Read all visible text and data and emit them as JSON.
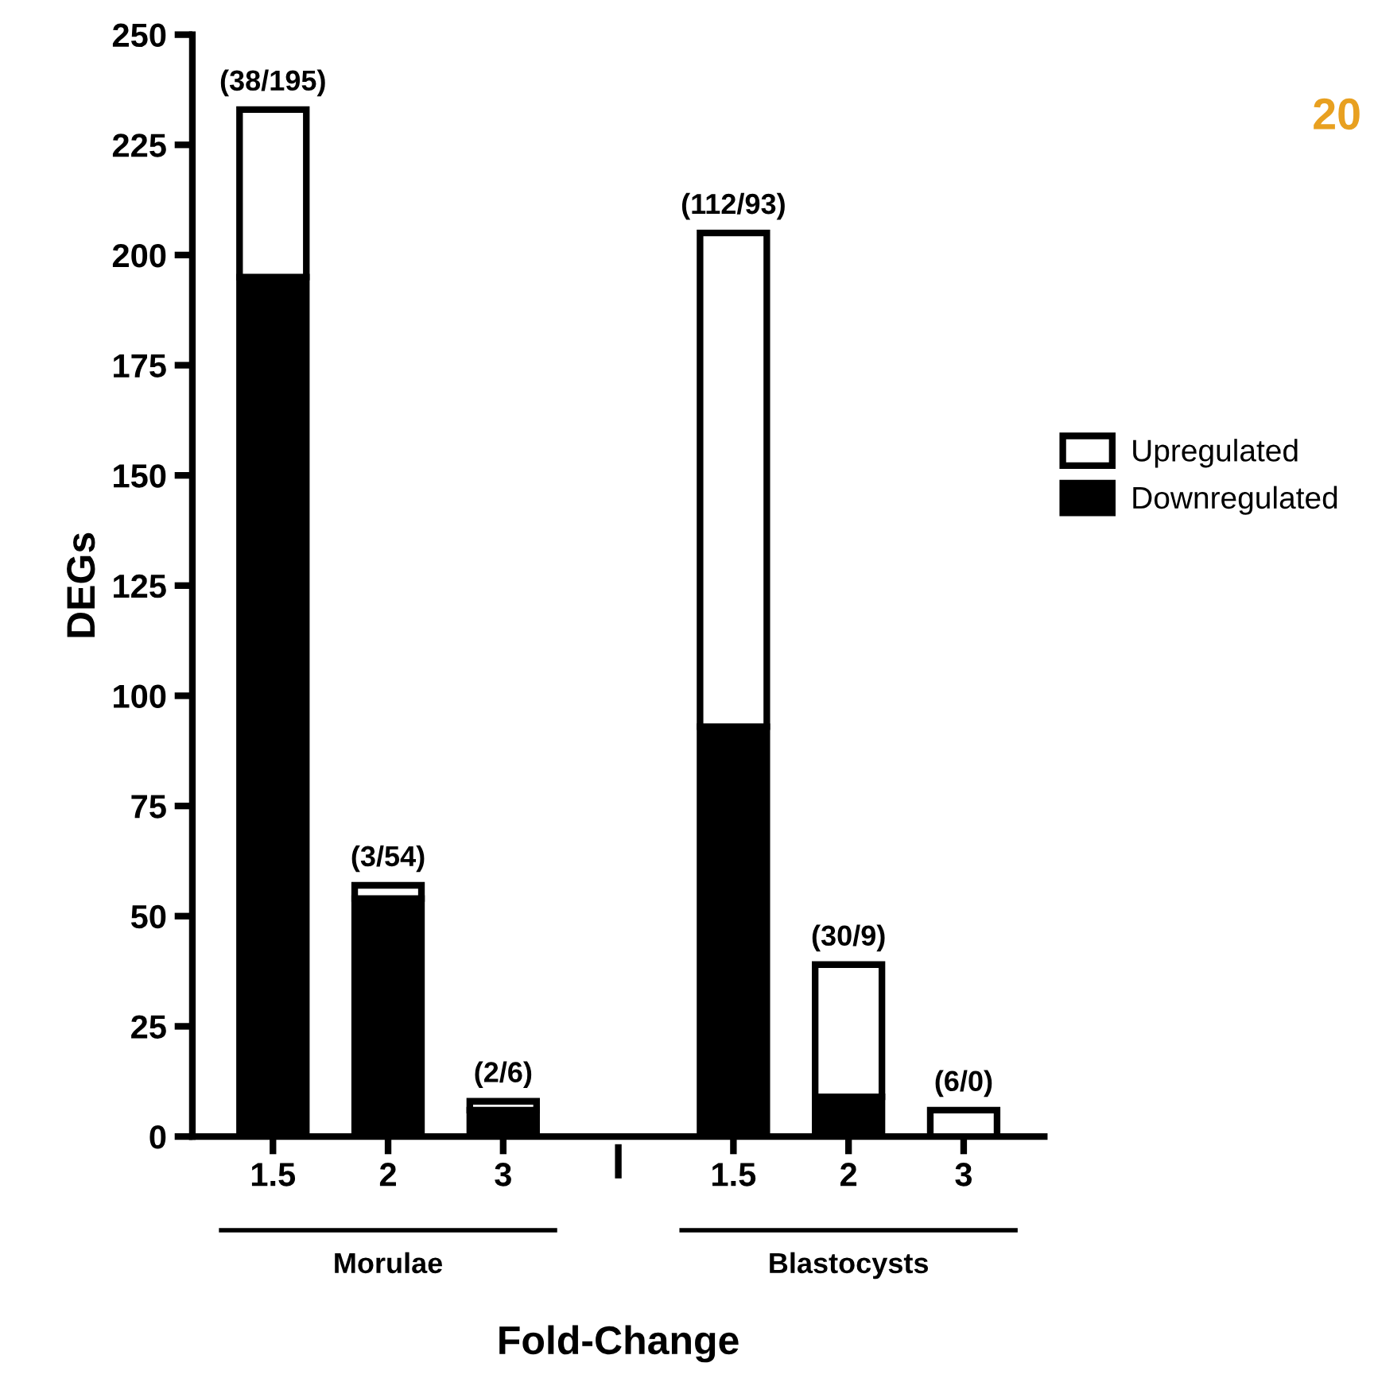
{
  "chart_data": {
    "type": "bar",
    "stacked": true,
    "ylabel": "DEGs",
    "xlabel": "Fold-Change",
    "categories": [
      "1.5",
      "2",
      "3",
      null,
      "1.5",
      "2",
      "3"
    ],
    "series": [
      {
        "name": "Downregulated",
        "color": "#000000",
        "values": [
          195,
          54,
          6,
          null,
          93,
          9,
          0
        ]
      },
      {
        "name": "Upregulated",
        "color": "#ffffff",
        "values": [
          38,
          3,
          2,
          null,
          112,
          30,
          6
        ]
      }
    ],
    "totals": [
      "(38/195)",
      "(3/54)",
      "(2/6)",
      null,
      "(112/93)",
      "(30/9)",
      "(6/0)"
    ],
    "ylim": [
      0,
      250
    ],
    "yticks": [
      0,
      25,
      50,
      75,
      100,
      125,
      150,
      175,
      200,
      225,
      250
    ],
    "legend": "right",
    "grid": false,
    "annotations": [
      "Morulae",
      "Blastocysts",
      "20"
    ]
  }
}
